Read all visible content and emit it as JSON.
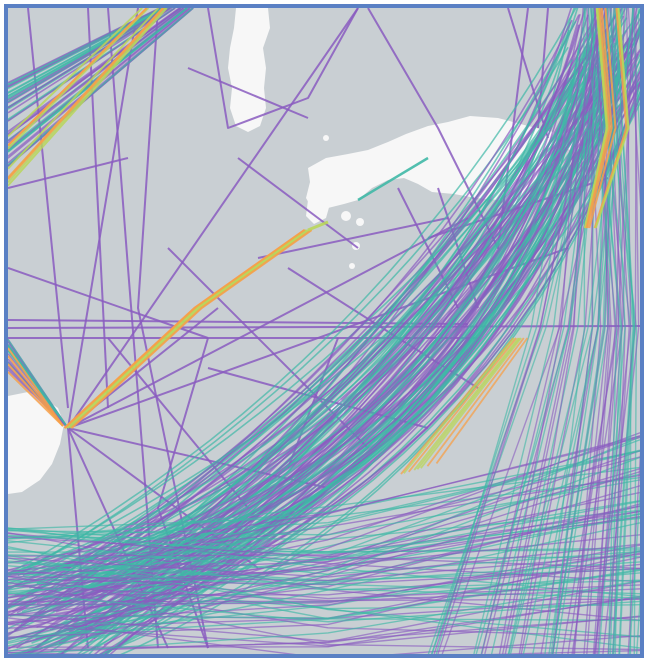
{
  "map": {
    "type": "shipping-density",
    "colors": {
      "sea": "#c9cfd3",
      "land": "#f7f7f7",
      "frame": "#5a80c4",
      "sparse_route": "#8a5cc0",
      "low_density": "#3fb8a6",
      "medium_density": "#b9d65a",
      "high_density": "#f6a04a"
    },
    "features": [
      "island-top-center",
      "island-long-right",
      "small-islets-center",
      "island-bottom-left",
      "islet-center-right"
    ]
  }
}
